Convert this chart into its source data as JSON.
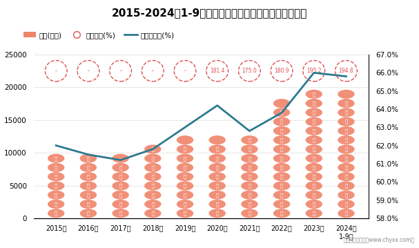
{
  "title": "2015-2024年1-9月广西壮族自治区工业企业负债统计图",
  "years": [
    "2015年",
    "2016年",
    "2017年",
    "2018年",
    "2019年",
    "2020年",
    "2021年",
    "2022年",
    "2023年",
    "2024年\n1-9月"
  ],
  "x_values": [
    0,
    1,
    2,
    3,
    4,
    5,
    6,
    7,
    8,
    9
  ],
  "liability_values": [
    9600,
    9300,
    9100,
    10800,
    11300,
    11900,
    12600,
    17200,
    19100,
    18600
  ],
  "equity_ratio_labels": [
    "-",
    "-",
    "-",
    "-",
    "-",
    "181.4",
    "175.0",
    "180.9",
    "195.2",
    "194.8"
  ],
  "asset_liability_rate": [
    62.0,
    61.5,
    61.2,
    61.8,
    63.0,
    64.2,
    62.8,
    63.8,
    66.0,
    65.8
  ],
  "left_ylim": [
    0,
    25000
  ],
  "left_yticks": [
    0,
    5000,
    10000,
    15000,
    20000,
    25000
  ],
  "right_ylim": [
    58.0,
    67.0
  ],
  "right_yticks": [
    58.0,
    59.0,
    60.0,
    61.0,
    62.0,
    63.0,
    64.0,
    65.0,
    66.0,
    67.0
  ],
  "legend_labels": [
    "负债(亿元)",
    "产权比率(%)",
    "资产负债率(%)"
  ],
  "bar_color": "#F0846A",
  "bar_width": 0.55,
  "ellipse_edge_color": "#E05050",
  "line_color": "#2B7A8F",
  "background_color": "#FFFFFF",
  "bubble_levels": [
    1000,
    2500,
    4000,
    5500,
    7000,
    8500,
    10000,
    11500,
    13000,
    14500,
    16000,
    17500,
    19000
  ],
  "bubble_text": "负",
  "watermark": "制图：智研咨询（www.chyxx.com）"
}
